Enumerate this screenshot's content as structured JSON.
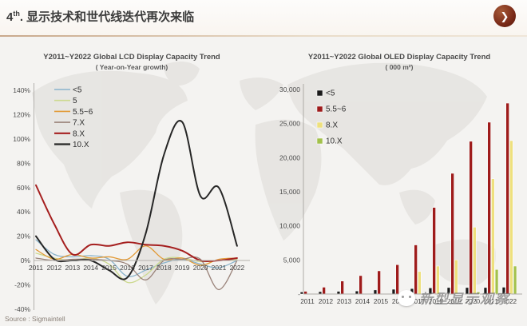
{
  "header": {
    "title_num": "4",
    "title_sup": "th",
    "title_rest": ". 显示技术和世代线迭代再次来临",
    "accent_color": "#c9a98c",
    "logo_color": "#7a2a18"
  },
  "source": "Source : Sigmaintell",
  "watermark": "新型显示观察",
  "chart_data": [
    {
      "type": "line",
      "title": "Y2011~Y2022 Global LCD Display Capacity Trend",
      "subtitle": "( Year-on-Year growth)",
      "x": [
        2011,
        2012,
        2013,
        2014,
        2015,
        2016,
        2017,
        2018,
        2019,
        2020,
        2021,
        2022
      ],
      "ylim": [
        -40,
        140
      ],
      "yticks": [
        "140%",
        "120%",
        "100%",
        "80%",
        "60%",
        "40%",
        "20%",
        "0%",
        "-20%",
        "-40%"
      ],
      "grid": false,
      "legend_position": "top-left-inside",
      "series": [
        {
          "name": "<5",
          "color": "#8ab4cc",
          "values": [
            17,
            5,
            3,
            4,
            1,
            -13,
            -8,
            -2,
            1,
            -3,
            -6,
            0
          ]
        },
        {
          "name": "5",
          "color": "#ccd98e",
          "values": [
            6,
            2,
            0,
            2,
            -3,
            -18,
            -12,
            1,
            2,
            -1,
            0,
            1
          ]
        },
        {
          "name": "5.5~6",
          "color": "#e29a37",
          "values": [
            9,
            1,
            5,
            2,
            3,
            1,
            12,
            1,
            2,
            -4,
            1,
            2
          ]
        },
        {
          "name": "7.X",
          "color": "#9a837a",
          "values": [
            2,
            0,
            1,
            1,
            0,
            -3,
            -16,
            0,
            1,
            1,
            -24,
            0
          ]
        },
        {
          "name": "8.X",
          "color": "#a51f1f",
          "values": [
            62,
            30,
            5,
            13,
            12,
            15,
            13,
            12,
            8,
            0,
            0,
            2
          ]
        },
        {
          "name": "10.X",
          "color": "#262626",
          "values": [
            20,
            1,
            0,
            0,
            -8,
            -14,
            22,
            87,
            114,
            53,
            60,
            12
          ]
        }
      ]
    },
    {
      "type": "bar",
      "title": "Y2011~Y2022 Global OLED Display Capacity Trend",
      "subtitle": "( 000 m²)",
      "categories": [
        2011,
        2012,
        2013,
        2014,
        2015,
        2016,
        2017,
        2018,
        2019,
        2020,
        2021,
        2022
      ],
      "ylim": [
        0,
        30000
      ],
      "yticks": [
        "30,000",
        "25,000",
        "20,000",
        "15,000",
        "10,000",
        "5,000",
        "-"
      ],
      "grid": false,
      "legend_position": "top-left-inside",
      "series": [
        {
          "name": "<5",
          "color": "#1a1a1a",
          "values": [
            300,
            350,
            400,
            450,
            600,
            700,
            800,
            900,
            950,
            950,
            950,
            1000
          ]
        },
        {
          "name": "5.5~6",
          "color": "#9e1b1b",
          "values": [
            400,
            1000,
            1900,
            2700,
            3400,
            4300,
            7200,
            12700,
            17700,
            22400,
            25200,
            28000
          ]
        },
        {
          "name": "8.X",
          "color": "#eee07d",
          "values": [
            0,
            0,
            0,
            0,
            0,
            0,
            3300,
            4100,
            5000,
            9800,
            16900,
            22500
          ]
        },
        {
          "name": "10.X",
          "color": "#a2c14b",
          "values": [
            0,
            0,
            0,
            0,
            0,
            0,
            0,
            0,
            0,
            300,
            3600,
            4100
          ]
        }
      ]
    }
  ]
}
